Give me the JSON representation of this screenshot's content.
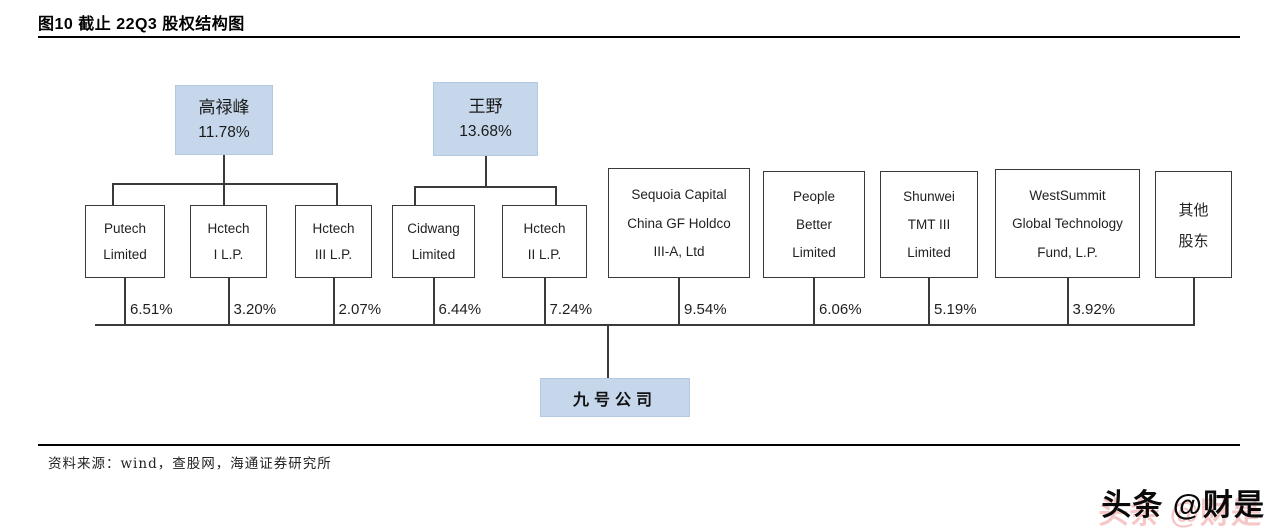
{
  "title": "图10 截止 22Q3 股权结构图",
  "diagram": {
    "founders": [
      {
        "name": "高禄峰",
        "stake": "11.78%",
        "children": [
          "Putech Limited",
          "Hctech I L.P.",
          "Hctech III L.P."
        ]
      },
      {
        "name": "王野",
        "stake": "13.68%",
        "children": [
          "Cidwang Limited",
          "Hctech II L.P."
        ]
      }
    ],
    "shareholders": [
      {
        "lines": [
          "Putech",
          "Limited"
        ],
        "stake": "6.51%"
      },
      {
        "lines": [
          "Hctech",
          "I L.P."
        ],
        "stake": "3.20%"
      },
      {
        "lines": [
          "Hctech",
          "III L.P."
        ],
        "stake": "2.07%"
      },
      {
        "lines": [
          "Cidwang",
          "Limited"
        ],
        "stake": "6.44%"
      },
      {
        "lines": [
          "Hctech",
          "II L.P."
        ],
        "stake": "7.24%"
      },
      {
        "lines": [
          "Sequoia Capital",
          "China GF Holdco",
          "III-A, Ltd"
        ],
        "stake": "9.54%"
      },
      {
        "lines": [
          "People",
          "Better",
          "Limited"
        ],
        "stake": "6.06%"
      },
      {
        "lines": [
          "Shunwei",
          "TMT III",
          "Limited"
        ],
        "stake": "5.19%"
      },
      {
        "lines": [
          "WestSummit",
          "Global Technology",
          "Fund, L.P."
        ],
        "stake": "3.92%"
      },
      {
        "lines": [
          "其他",
          "股东"
        ],
        "stake": null
      }
    ],
    "company": "九号公司"
  },
  "footer": {
    "source": "资料来源：wind，查股网，海通证券研究所"
  },
  "watermark": "头条 @财是",
  "colors": {
    "highlight_box": "#c6d7eb",
    "line": "#3a3a3a"
  }
}
